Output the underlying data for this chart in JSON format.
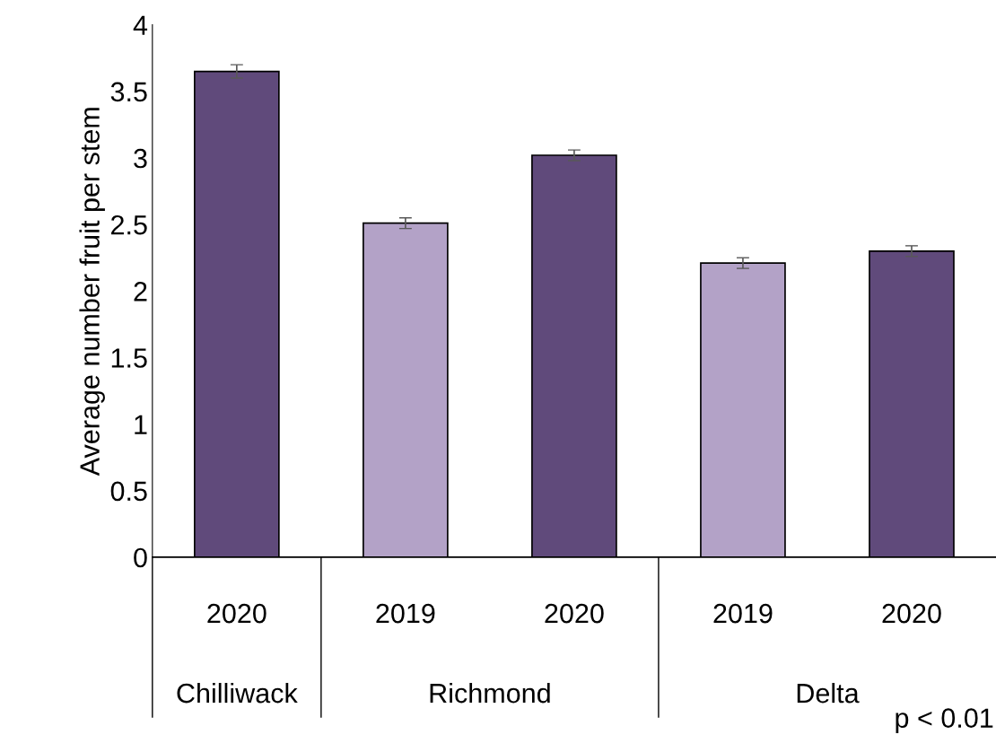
{
  "chart_data": {
    "type": "bar",
    "ylabel": "Average number fruit per stem",
    "categories": [
      "2020",
      "2019",
      "2020",
      "2019",
      "2020"
    ],
    "values": [
      3.65,
      2.51,
      3.02,
      2.21,
      2.3
    ],
    "errors": [
      0.05,
      0.04,
      0.04,
      0.04,
      0.04
    ],
    "colors": [
      "#604a7b",
      "#b3a2c7",
      "#604a7b",
      "#b3a2c7",
      "#604a7b"
    ],
    "ylim": [
      0,
      4
    ],
    "yticks": [
      0,
      0.5,
      1,
      1.5,
      2,
      2.5,
      3,
      3.5,
      4
    ],
    "grid": false,
    "annotations": [
      "Chilliwack",
      "Richmond",
      "Delta",
      "p < 0.01"
    ]
  }
}
